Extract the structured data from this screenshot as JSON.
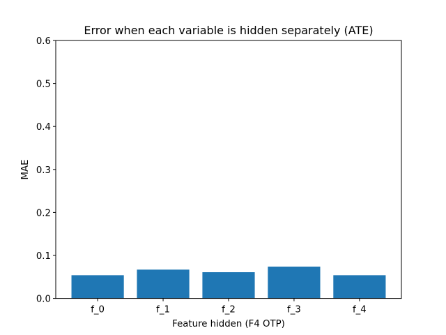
{
  "chart_data": {
    "type": "bar",
    "title": "Error when each variable is hidden separately (ATE)",
    "xlabel": "Feature hidden (F4 OTP)",
    "ylabel": "MAE",
    "categories": [
      "f_0",
      "f_1",
      "f_2",
      "f_3",
      "f_4"
    ],
    "values": [
      0.054,
      0.067,
      0.061,
      0.074,
      0.054
    ],
    "ylim": [
      0,
      0.6
    ],
    "yticks": [
      0.0,
      0.1,
      0.2,
      0.3,
      0.4,
      0.5,
      0.6
    ],
    "ytick_labels": [
      "0.0",
      "0.1",
      "0.2",
      "0.3",
      "0.4",
      "0.5",
      "0.6"
    ],
    "grid": false,
    "bar_color": "#1f77b4"
  }
}
